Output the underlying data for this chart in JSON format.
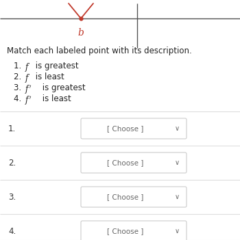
{
  "bg_color": "#ffffff",
  "graph_line_color": "#555555",
  "curve_color": "#c0392b",
  "point_color": "#c0392b",
  "label_b": "b",
  "label_b_color": "#c0392b",
  "title_text": "Match each labeled point with its description.",
  "list_items": [
    [
      "1. ",
      "$f$",
      " is greatest"
    ],
    [
      "2. ",
      "$f$",
      " is least"
    ],
    [
      "3. ",
      "$f'$",
      " is greatest"
    ],
    [
      "4. ",
      "$f'$",
      " is least"
    ]
  ],
  "row_labels": [
    "1.",
    "2.",
    "3.",
    "4."
  ],
  "choose_text": "[ Choose ]",
  "chevron": "∨",
  "dropdown_bg": "#ffffff",
  "dropdown_border": "#cccccc",
  "separator_color": "#dddddd",
  "text_color": "#333333",
  "choose_color": "#666666"
}
